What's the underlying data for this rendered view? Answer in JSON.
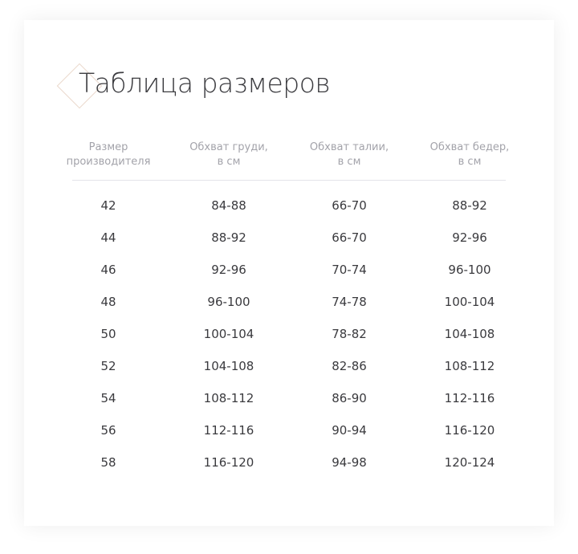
{
  "title": "Таблица размеров",
  "columns": [
    "Размер\nпроизводителя",
    "Обхват груди,\nв см",
    "Обхват талии,\nв см",
    "Обхват бедер,\nв см"
  ],
  "rows": [
    [
      "42",
      "84-88",
      "66-70",
      "88-92"
    ],
    [
      "44",
      "88-92",
      "66-70",
      "92-96"
    ],
    [
      "46",
      "92-96",
      "70-74",
      "96-100"
    ],
    [
      "48",
      "96-100",
      "74-78",
      "100-104"
    ],
    [
      "50",
      "100-104",
      "78-82",
      "104-108"
    ],
    [
      "52",
      "104-108",
      "82-86",
      "108-112"
    ],
    [
      "54",
      "108-112",
      "86-90",
      "112-116"
    ],
    [
      "56",
      "112-116",
      "90-94",
      "116-120"
    ],
    [
      "58",
      "116-120",
      "94-98",
      "120-124"
    ]
  ]
}
